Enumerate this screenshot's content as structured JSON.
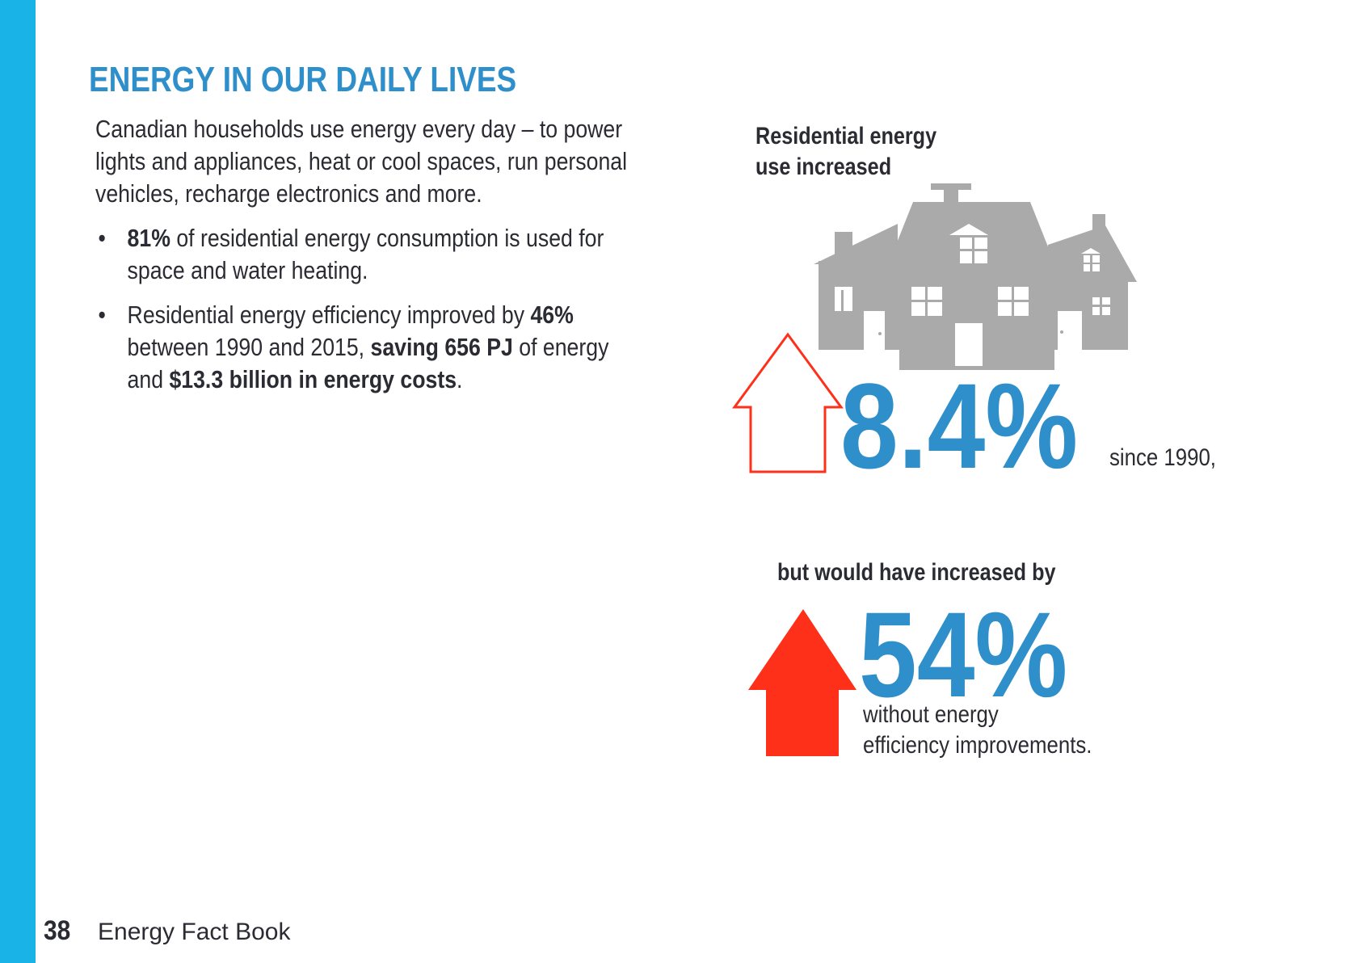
{
  "page": {
    "title": "ENERGY IN OUR DAILY LIVES",
    "intro": "Canadian households use energy every day – to power lights and appliances, heat or cool spaces, run personal vehicles, recharge electronics and more.",
    "bullet_marker": "•",
    "bullets": [
      {
        "b1": "81%",
        "t1": " of residential energy consumption is used for space and water heating."
      },
      {
        "t1": "Residential energy efficiency improved by ",
        "b1": "46%",
        "t2": " between 1990 and 2015, ",
        "b2": "saving 656 PJ",
        "t3": " of energy and ",
        "b3": "$13.3 billion in energy costs",
        "t4": "."
      }
    ]
  },
  "infographic": {
    "heading_line1": "Residential energy",
    "heading_line2": "use increased",
    "stat1_value": "8.4%",
    "stat1_note": "since 1990,",
    "heading2": "but would have increased by",
    "stat2_value": "54%",
    "stat2_note_line1": "without energy",
    "stat2_note_line2": "efficiency improvements.",
    "icons": [
      "houses-icon",
      "arrow-up-outline-icon",
      "arrow-up-solid-icon"
    ]
  },
  "footer": {
    "page_number": "38",
    "book_title": "Energy Fact Book"
  },
  "colors": {
    "sidebar": "#1ab3e8",
    "title_blue": "#2f8fca",
    "arrow_red": "#ff3019",
    "house_gray": "#aaaaaa",
    "text_dark": "#2b2b33"
  }
}
